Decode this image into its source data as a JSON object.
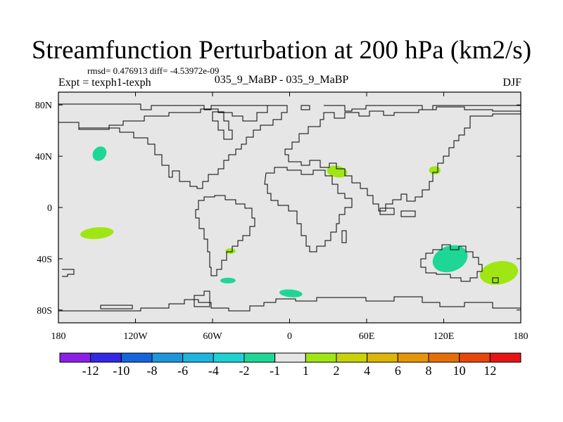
{
  "title": "Streamfunction Perturbation at 200 hPa (km2/s)",
  "rmsd_text": "rmsd= 0.476913 diff= -4.53972e-09",
  "left_string": "Expt = texph1-texph",
  "center_string": "035_9_MaBP - 035_9_MaBP",
  "right_string": "DJF",
  "chart_data": {
    "type": "heatmap",
    "projection": "cylindrical-equidistant",
    "title": "Streamfunction Perturbation at 200 hPa (km2/s)",
    "xlim": [
      -180,
      180
    ],
    "ylim": [
      -90,
      90
    ],
    "x_ticks": [
      {
        "value": -180,
        "label": "180"
      },
      {
        "value": -120,
        "label": "120W"
      },
      {
        "value": -60,
        "label": "60W"
      },
      {
        "value": 0,
        "label": "0"
      },
      {
        "value": 60,
        "label": "60E"
      },
      {
        "value": 120,
        "label": "120E"
      },
      {
        "value": 180,
        "label": "180"
      }
    ],
    "y_ticks": [
      {
        "value": 80,
        "label": "80N"
      },
      {
        "value": 40,
        "label": "40N"
      },
      {
        "value": 0,
        "label": "0"
      },
      {
        "value": -40,
        "label": "40S"
      },
      {
        "value": -80,
        "label": "80S"
      }
    ],
    "background_color": "#e6e6e6",
    "anomalies": [
      {
        "lon": -148,
        "lat": 42,
        "rx": 5,
        "ry": 6,
        "rot": 40,
        "range": [
          -2,
          -1
        ],
        "color": "#1ed796"
      },
      {
        "lon": -150,
        "lat": -20,
        "rx": 13,
        "ry": 4.5,
        "rot": -5,
        "range": [
          1,
          2
        ],
        "color": "#a0e614"
      },
      {
        "lon": 37,
        "lat": 28,
        "rx": 8,
        "ry": 4.5,
        "rot": 10,
        "range": [
          1,
          2
        ],
        "color": "#a0e614"
      },
      {
        "lon": 113,
        "lat": 29,
        "rx": 4.5,
        "ry": 3.2,
        "rot": 0,
        "range": [
          1,
          2
        ],
        "color": "#a0e614"
      },
      {
        "lon": -46,
        "lat": -34,
        "rx": 4,
        "ry": 2.2,
        "rot": 0,
        "range": [
          1,
          2
        ],
        "color": "#a0e614"
      },
      {
        "lon": -48,
        "lat": -57,
        "rx": 6,
        "ry": 2.2,
        "rot": 0,
        "range": [
          -2,
          -1
        ],
        "color": "#1ed796"
      },
      {
        "lon": 1,
        "lat": -67,
        "rx": 9,
        "ry": 3,
        "rot": 5,
        "range": [
          -2,
          -1
        ],
        "color": "#1ed796"
      },
      {
        "lon": 125,
        "lat": -40,
        "rx": 14,
        "ry": 10,
        "rot": -20,
        "range": [
          -2,
          -1
        ],
        "color": "#1ed796"
      },
      {
        "lon": 163,
        "lat": -51,
        "rx": 15,
        "ry": 9,
        "rot": -10,
        "range": [
          1,
          2
        ],
        "color": "#a0e614"
      }
    ],
    "colorbar": {
      "labels": [
        "-12",
        "-10",
        "-8",
        "-6",
        "-4",
        "-2",
        "-1",
        "1",
        "2",
        "4",
        "6",
        "8",
        "10",
        "12"
      ],
      "colors": [
        "#8c1ee6",
        "#3228e6",
        "#1464dc",
        "#1e96dc",
        "#1eb4dc",
        "#1ed2d2",
        "#1ed796",
        "#e6e6e6",
        "#a0e614",
        "#c8d20a",
        "#dcb40a",
        "#e6960a",
        "#e66e0a",
        "#e6460a",
        "#e61414"
      ]
    }
  }
}
